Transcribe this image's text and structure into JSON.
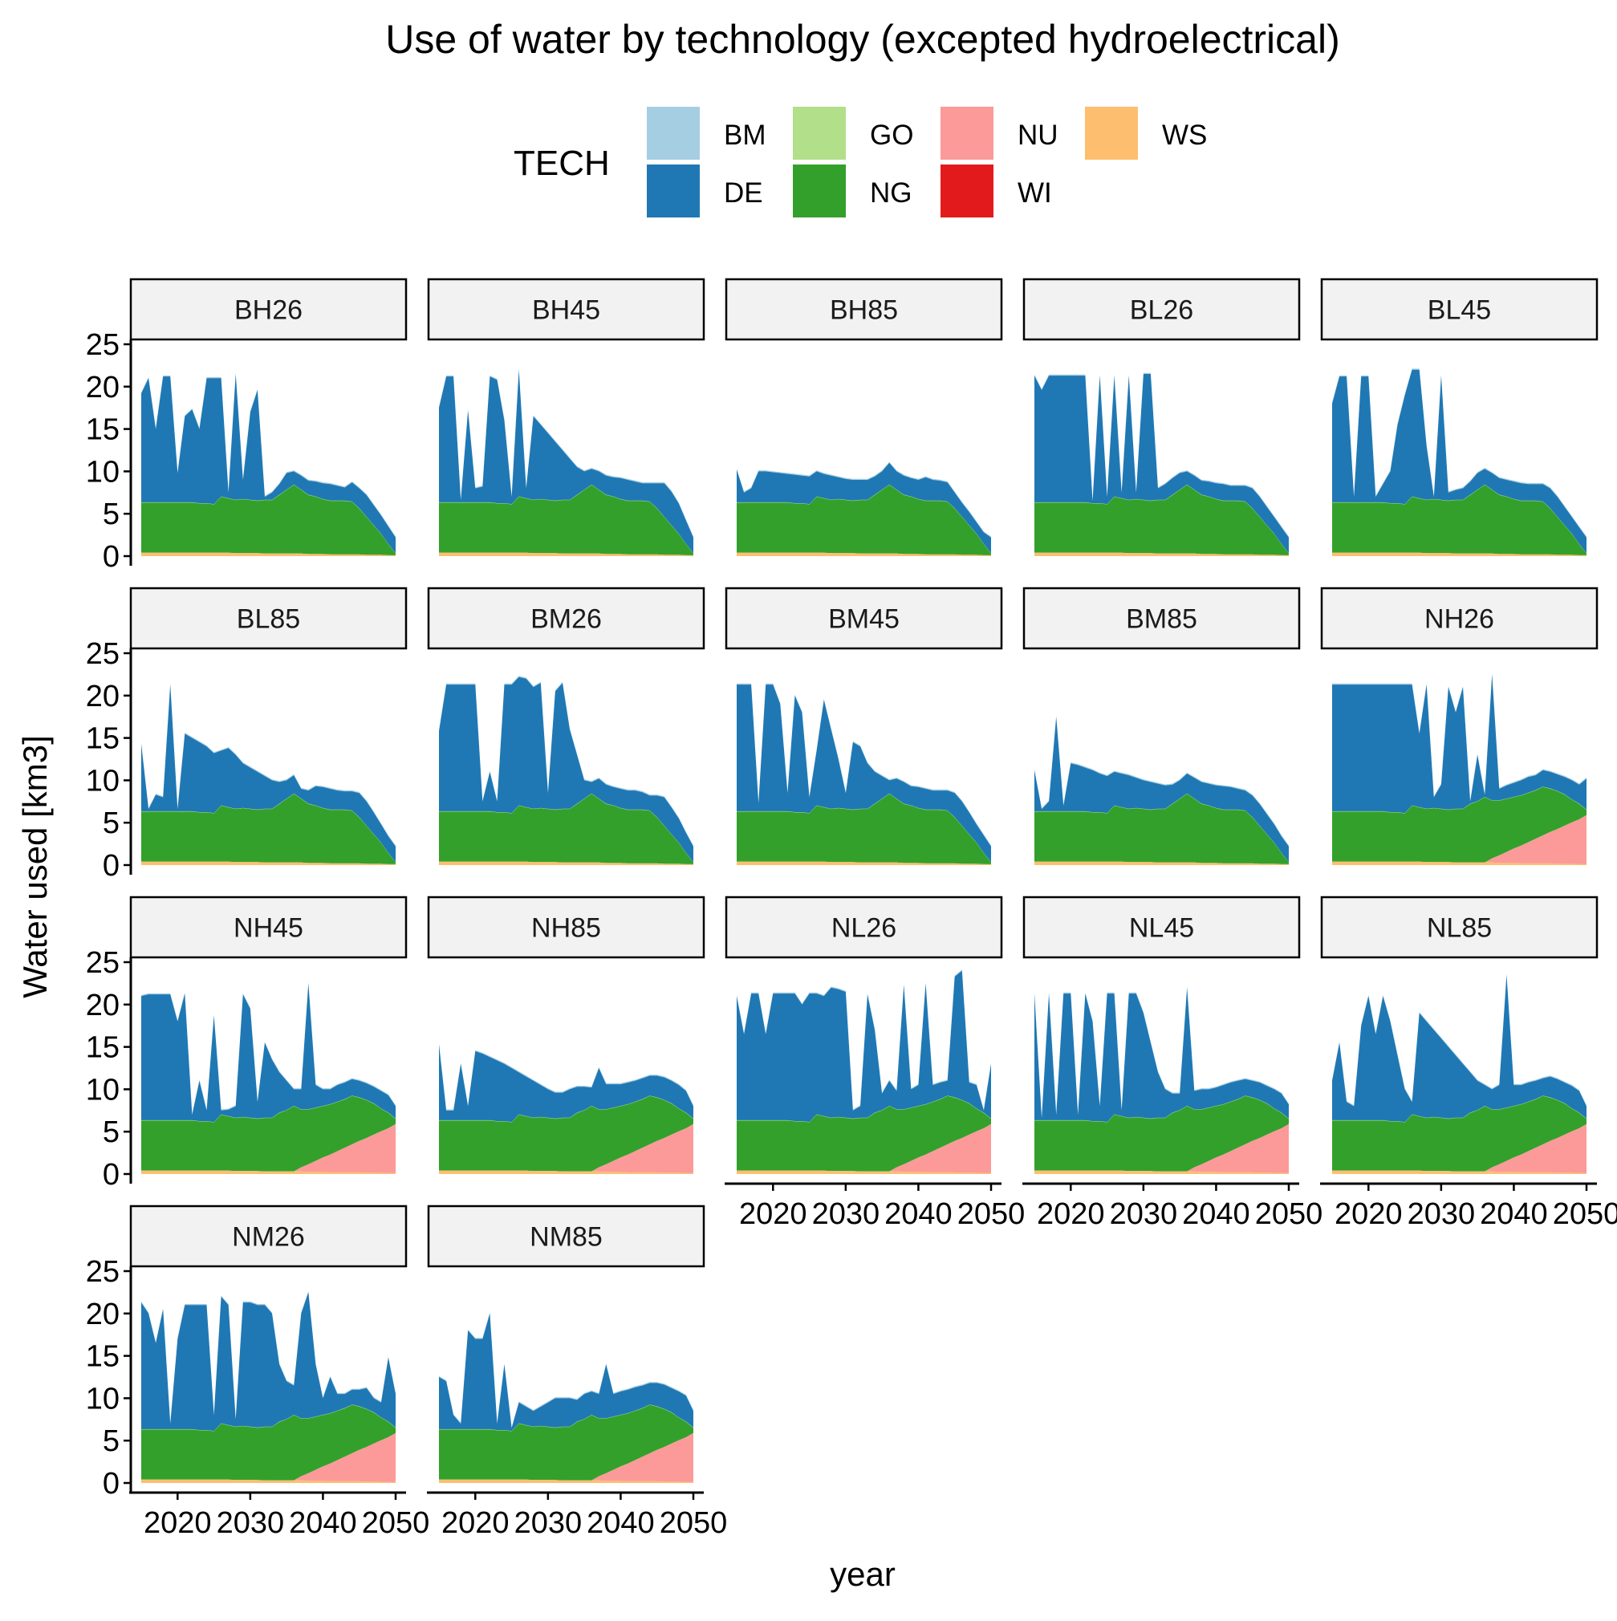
{
  "chart_data": {
    "type": "area",
    "title": "Use of water by technology (excepted hydroelectrical)",
    "xlabel": "year",
    "ylabel": "Water used [km3]",
    "xlim": [
      2015,
      2050
    ],
    "ylim": [
      0,
      25
    ],
    "x_ticks": [
      "2020",
      "2030",
      "2040",
      "2050"
    ],
    "y_ticks": [
      "0",
      "5",
      "10",
      "15",
      "20",
      "25"
    ],
    "legend": {
      "title": "TECH",
      "placement": "top",
      "items": [
        {
          "key": "BM",
          "label": "BM",
          "color": "#a6cee3"
        },
        {
          "key": "DE",
          "label": "DE",
          "color": "#1f78b4"
        },
        {
          "key": "GO",
          "label": "GO",
          "color": "#b2df8a"
        },
        {
          "key": "NG",
          "label": "NG",
          "color": "#33a02c"
        },
        {
          "key": "NU",
          "label": "NU",
          "color": "#fb9a99"
        },
        {
          "key": "WI",
          "label": "WI",
          "color": "#e31a1c"
        },
        {
          "key": "WS",
          "label": "WS",
          "color": "#fdbf6f"
        }
      ]
    },
    "base": {
      "years": [
        2015,
        2016,
        2017,
        2018,
        2019,
        2020,
        2021,
        2022,
        2023,
        2024,
        2025,
        2026,
        2027,
        2028,
        2029,
        2030,
        2031,
        2032,
        2033,
        2034,
        2035,
        2036,
        2037,
        2038,
        2039,
        2040,
        2041,
        2042,
        2043,
        2044,
        2045,
        2046,
        2047,
        2048,
        2049,
        2050
      ],
      "ws": [
        0.4,
        0.4,
        0.4,
        0.4,
        0.4,
        0.4,
        0.4,
        0.4,
        0.4,
        0.4,
        0.4,
        0.4,
        0.4,
        0.35,
        0.35,
        0.35,
        0.35,
        0.3,
        0.3,
        0.3,
        0.3,
        0.3,
        0.3,
        0.25,
        0.25,
        0.25,
        0.2,
        0.2,
        0.2,
        0.2,
        0.2,
        0.15,
        0.15,
        0.15,
        0.1,
        0.1
      ],
      "ng_total_b": [
        6.3,
        6.3,
        6.3,
        6.3,
        6.3,
        6.3,
        6.3,
        6.3,
        6.2,
        6.2,
        6.1,
        7.0,
        6.8,
        6.6,
        6.7,
        6.6,
        6.5,
        6.6,
        6.6,
        7.2,
        7.8,
        8.4,
        7.8,
        7.2,
        7.0,
        6.7,
        6.5,
        6.5,
        6.5,
        6.4,
        5.6,
        4.6,
        3.6,
        2.6,
        1.4,
        0.3
      ],
      "ng_total_n": [
        6.3,
        6.3,
        6.3,
        6.3,
        6.3,
        6.3,
        6.3,
        6.3,
        6.2,
        6.2,
        6.1,
        7.0,
        6.8,
        6.6,
        6.7,
        6.6,
        6.5,
        6.6,
        6.6,
        7.2,
        7.5,
        8.0,
        7.6,
        7.6,
        7.8,
        8.0,
        8.2,
        8.5,
        8.8,
        9.2,
        9.0,
        8.7,
        8.3,
        7.7,
        7.2,
        6.5
      ],
      "nu_n": [
        0,
        0,
        0,
        0,
        0,
        0,
        0,
        0,
        0,
        0,
        0,
        0,
        0,
        0,
        0,
        0,
        0,
        0,
        0,
        0,
        0,
        0,
        0.5,
        0.9,
        1.3,
        1.7,
        2.1,
        2.5,
        2.9,
        3.3,
        3.7,
        4.1,
        4.5,
        4.9,
        5.3,
        5.8
      ],
      "de_total_low_b": [
        10.2,
        7.5,
        8.0,
        10.0,
        10.0,
        9.9,
        9.8,
        9.7,
        9.6,
        9.5,
        9.4,
        10.0,
        9.7,
        9.5,
        9.3,
        9.1,
        9.0,
        9.0,
        9.0,
        9.4,
        10.0,
        11.0,
        10.0,
        9.5,
        9.2,
        9.0,
        9.3,
        9.0,
        8.9,
        8.7,
        7.5,
        6.3,
        5.2,
        4.0,
        2.8,
        2.2
      ],
      "de_total_low_n": [
        15.0,
        8.0,
        8.0,
        13.0,
        8.0,
        14.5,
        14.2,
        13.8,
        13.4,
        13.0,
        12.5,
        12.0,
        11.5,
        11.0,
        10.5,
        10.0,
        9.6,
        9.6,
        10.0,
        10.3,
        10.3,
        10.2,
        12.5,
        10.6,
        10.6,
        10.6,
        10.8,
        11.0,
        11.3,
        11.6,
        11.6,
        11.4,
        11.0,
        10.5,
        9.8,
        8.0
      ],
      "de_total_high": [
        21.5,
        21.5,
        21.5,
        21.5,
        21.5,
        21.5,
        21.5,
        21.5,
        21.5,
        21.5,
        21.5,
        21.5,
        21.5,
        21.5,
        21.5,
        21.5,
        21.5,
        21.5,
        21.5,
        21.5,
        21.5,
        21.5,
        21.5,
        21.5,
        21.5,
        21.5,
        21.5,
        21.5,
        21.5,
        21.5,
        21.5,
        21.5,
        21.5,
        21.5,
        21.5,
        21.5
      ]
    },
    "panels": [
      {
        "label": "BH26",
        "family": "B",
        "de_total": [
          19.2,
          21.0,
          15.0,
          21.2,
          21.2,
          9.8,
          16.5,
          17.3,
          15.0,
          21.0,
          21.0,
          21.0,
          7.5,
          21.5,
          9.0,
          17.0,
          19.6,
          7.0,
          7.5,
          8.5,
          9.8,
          10.0,
          9.5,
          8.9,
          8.8,
          8.6,
          8.5,
          8.3,
          8.1,
          8.7,
          8.0,
          7.2,
          6.0,
          4.8,
          3.5,
          2.2
        ]
      },
      {
        "label": "BH45",
        "family": "B",
        "de_total": [
          17.5,
          21.2,
          21.2,
          6.3,
          17.2,
          8.0,
          8.2,
          21.2,
          20.8,
          16.0,
          7.0,
          22.0,
          8.0,
          16.5,
          15.5,
          14.5,
          13.5,
          12.5,
          11.5,
          10.5,
          10.0,
          10.3,
          10.0,
          9.5,
          9.3,
          9.2,
          9.0,
          8.8,
          8.6,
          8.6,
          8.6,
          8.6,
          7.6,
          6.2,
          4.2,
          2.2
        ]
      },
      {
        "label": "BH85",
        "family": "B",
        "de_total": [
          10.2,
          7.5,
          8.0,
          10.0,
          10.0,
          9.9,
          9.8,
          9.7,
          9.6,
          9.5,
          9.4,
          10.0,
          9.7,
          9.5,
          9.3,
          9.1,
          9.0,
          9.0,
          9.0,
          9.4,
          10.0,
          11.0,
          10.0,
          9.5,
          9.2,
          9.0,
          9.3,
          9.0,
          8.9,
          8.7,
          7.5,
          6.3,
          5.2,
          4.0,
          2.8,
          2.2
        ]
      },
      {
        "label": "BL26",
        "family": "B",
        "de_total": [
          21.3,
          19.6,
          21.3,
          21.3,
          21.3,
          21.3,
          21.3,
          21.3,
          6.5,
          21.3,
          7.0,
          21.3,
          7.5,
          21.3,
          7.5,
          21.5,
          21.5,
          8.0,
          8.5,
          9.2,
          9.8,
          10.0,
          9.5,
          8.9,
          8.8,
          8.6,
          8.5,
          8.3,
          8.3,
          8.3,
          8.0,
          7.0,
          5.8,
          4.6,
          3.4,
          2.2
        ]
      },
      {
        "label": "BL45",
        "family": "B",
        "de_total": [
          18.0,
          21.2,
          21.2,
          7.0,
          21.2,
          21.2,
          7.0,
          8.5,
          10.0,
          15.5,
          19.0,
          22.0,
          22.0,
          13.0,
          7.0,
          21.3,
          7.5,
          7.8,
          8.0,
          8.8,
          9.8,
          10.3,
          9.8,
          9.2,
          9.0,
          8.8,
          8.6,
          8.5,
          8.5,
          8.5,
          8.0,
          7.0,
          5.8,
          4.6,
          3.4,
          2.2
        ]
      },
      {
        "label": "BL85",
        "family": "B",
        "de_total": [
          14.3,
          6.5,
          8.3,
          8.0,
          21.3,
          6.5,
          15.5,
          15.0,
          14.5,
          14.0,
          13.2,
          13.5,
          13.8,
          13.0,
          12.0,
          11.5,
          11.0,
          10.5,
          10.0,
          9.8,
          10.0,
          10.6,
          9.0,
          8.8,
          9.3,
          9.2,
          9.0,
          8.8,
          8.7,
          8.7,
          8.5,
          7.5,
          6.2,
          4.8,
          3.4,
          2.2
        ]
      },
      {
        "label": "BM26",
        "family": "B",
        "de_total": [
          15.8,
          21.3,
          21.3,
          21.3,
          21.3,
          21.3,
          7.5,
          11.0,
          7.5,
          21.3,
          21.3,
          22.2,
          22.0,
          21.0,
          21.5,
          8.5,
          20.5,
          21.5,
          16.0,
          13.0,
          10.0,
          9.8,
          10.2,
          9.5,
          9.2,
          9.0,
          8.8,
          8.8,
          8.6,
          8.2,
          8.2,
          8.0,
          6.8,
          5.5,
          3.8,
          2.2
        ]
      },
      {
        "label": "BM45",
        "family": "B",
        "de_total": [
          21.3,
          21.3,
          21.3,
          7.3,
          21.3,
          21.3,
          19.0,
          8.5,
          20.0,
          18.0,
          8.0,
          13.5,
          19.5,
          16.0,
          12.5,
          8.5,
          14.5,
          14.0,
          12.0,
          11.0,
          10.5,
          10.0,
          10.2,
          9.8,
          9.3,
          9.2,
          9.0,
          8.8,
          8.8,
          8.8,
          8.5,
          7.5,
          6.2,
          4.8,
          3.5,
          2.2
        ]
      },
      {
        "label": "BM85",
        "family": "B",
        "de_total": [
          11.2,
          6.5,
          7.5,
          17.5,
          7.0,
          12.0,
          11.8,
          11.5,
          11.2,
          10.8,
          10.5,
          11.0,
          10.8,
          10.6,
          10.3,
          10.0,
          9.8,
          9.6,
          9.4,
          9.5,
          10.0,
          10.8,
          10.3,
          9.8,
          9.6,
          9.4,
          9.3,
          9.2,
          9.0,
          8.8,
          8.2,
          7.2,
          6.0,
          4.8,
          3.4,
          2.2
        ]
      },
      {
        "label": "NH26",
        "family": "N",
        "de_total": [
          21.3,
          21.3,
          21.3,
          21.3,
          21.3,
          21.3,
          21.3,
          21.3,
          21.3,
          21.3,
          21.3,
          21.3,
          15.5,
          21.3,
          8.0,
          9.5,
          21.0,
          18.0,
          21.0,
          7.5,
          13.0,
          8.3,
          22.5,
          9.0,
          9.4,
          9.7,
          10.0,
          10.4,
          10.6,
          11.2,
          11.0,
          10.7,
          10.4,
          10.0,
          9.5,
          10.2
        ]
      },
      {
        "label": "NH45",
        "family": "N",
        "de_total": [
          21.0,
          21.2,
          21.2,
          21.2,
          21.2,
          18.0,
          21.3,
          7.0,
          11.0,
          7.5,
          18.7,
          7.5,
          7.6,
          8.0,
          21.2,
          19.5,
          8.5,
          15.5,
          13.5,
          12.0,
          11.0,
          10.0,
          10.0,
          22.5,
          10.5,
          10.0,
          10.0,
          10.5,
          10.8,
          11.2,
          11.0,
          10.7,
          10.3,
          9.8,
          9.3,
          8.0
        ]
      },
      {
        "label": "NH85",
        "family": "N",
        "de_total": [
          15.3,
          7.5,
          7.5,
          13.0,
          8.0,
          14.5,
          14.2,
          13.8,
          13.4,
          13.0,
          12.5,
          12.0,
          11.5,
          11.0,
          10.5,
          10.0,
          9.6,
          9.6,
          10.0,
          10.3,
          10.3,
          10.2,
          12.5,
          10.6,
          10.6,
          10.6,
          10.8,
          11.0,
          11.3,
          11.6,
          11.6,
          11.4,
          11.0,
          10.5,
          9.8,
          8.0
        ]
      },
      {
        "label": "NL26",
        "family": "N",
        "de_total": [
          21.0,
          16.5,
          21.3,
          21.3,
          16.5,
          21.3,
          21.3,
          21.3,
          21.3,
          20.0,
          21.3,
          21.3,
          21.0,
          22.0,
          21.8,
          21.5,
          7.5,
          8.0,
          21.2,
          17.0,
          9.5,
          11.0,
          9.8,
          22.3,
          10.0,
          10.5,
          22.5,
          10.5,
          10.8,
          11.0,
          23.3,
          24.0,
          10.8,
          10.5,
          6.0,
          13.0
        ]
      },
      {
        "label": "NL45",
        "family": "N",
        "de_total": [
          21.3,
          6.5,
          21.3,
          7.0,
          21.3,
          21.3,
          7.0,
          21.3,
          18.0,
          8.0,
          21.3,
          21.3,
          7.5,
          21.3,
          21.3,
          19.0,
          15.5,
          12.0,
          10.0,
          9.5,
          9.5,
          22.0,
          9.8,
          10.0,
          10.0,
          10.2,
          10.5,
          10.8,
          11.0,
          11.2,
          11.0,
          10.8,
          10.4,
          10.0,
          9.5,
          8.2
        ]
      },
      {
        "label": "NL85",
        "family": "N",
        "de_total": [
          11.0,
          15.5,
          8.5,
          8.0,
          17.5,
          21.0,
          16.5,
          21.0,
          18.0,
          14.0,
          10.0,
          8.5,
          19.0,
          18.0,
          17.0,
          16.0,
          15.0,
          14.0,
          13.0,
          12.0,
          11.0,
          10.5,
          10.0,
          10.5,
          23.5,
          10.5,
          10.5,
          10.8,
          11.0,
          11.3,
          11.5,
          11.2,
          10.8,
          10.4,
          9.8,
          8.0
        ]
      },
      {
        "label": "NM26",
        "family": "N",
        "de_total": [
          21.3,
          20.0,
          16.5,
          20.5,
          7.0,
          17.0,
          21.0,
          21.0,
          21.0,
          21.0,
          8.0,
          22.0,
          21.0,
          7.5,
          21.3,
          21.3,
          21.0,
          21.0,
          20.0,
          14.0,
          12.0,
          11.5,
          20.0,
          22.5,
          14.0,
          10.0,
          12.5,
          10.5,
          10.5,
          11.0,
          11.0,
          11.2,
          10.0,
          9.5,
          14.8,
          10.5
        ]
      },
      {
        "label": "NM85",
        "family": "N",
        "de_total": [
          12.5,
          12.0,
          8.0,
          7.0,
          18.0,
          17.0,
          17.0,
          20.0,
          7.0,
          14.0,
          6.5,
          9.5,
          9.0,
          8.5,
          9.0,
          9.5,
          10.0,
          10.0,
          10.0,
          9.8,
          10.5,
          10.8,
          10.5,
          14.0,
          10.5,
          10.8,
          11.0,
          11.3,
          11.5,
          11.8,
          11.8,
          11.6,
          11.2,
          10.8,
          10.3,
          8.5
        ]
      }
    ]
  }
}
